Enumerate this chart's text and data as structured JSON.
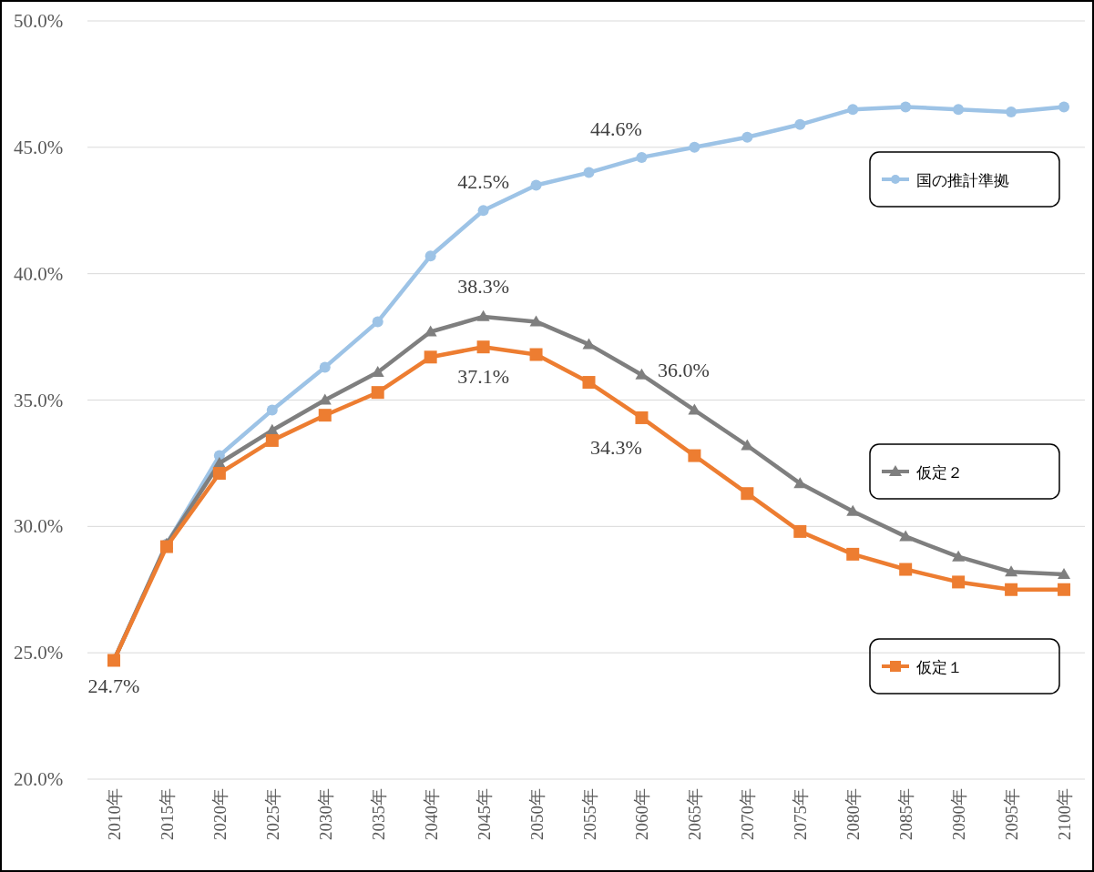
{
  "chart_data": {
    "type": "line",
    "categories": [
      "2010年",
      "2015年",
      "2020年",
      "2025年",
      "2030年",
      "2035年",
      "2040年",
      "2045年",
      "2050年",
      "2055年",
      "2060年",
      "2065年",
      "2070年",
      "2075年",
      "2080年",
      "2085年",
      "2090年",
      "2095年",
      "2100年"
    ],
    "series": [
      {
        "name": "国の推計準拠",
        "color": "#9dc3e6",
        "marker": "circle",
        "values": [
          24.7,
          29.3,
          32.8,
          34.6,
          36.3,
          38.1,
          40.7,
          42.5,
          43.5,
          44.0,
          44.6,
          45.0,
          45.4,
          45.9,
          46.5,
          46.6,
          46.5,
          46.4,
          46.6
        ]
      },
      {
        "name": "仮定２",
        "color": "#7f7f7f",
        "marker": "triangle",
        "values": [
          24.7,
          29.3,
          32.5,
          33.8,
          35.0,
          36.1,
          37.7,
          38.3,
          38.1,
          37.2,
          36.0,
          34.6,
          33.2,
          31.7,
          30.6,
          29.6,
          28.8,
          28.2,
          28.1
        ]
      },
      {
        "name": "仮定１",
        "color": "#ed7d31",
        "marker": "square",
        "values": [
          24.7,
          29.2,
          32.1,
          33.4,
          34.4,
          35.3,
          36.7,
          37.1,
          36.8,
          35.7,
          34.3,
          32.8,
          31.3,
          29.8,
          28.9,
          28.3,
          27.8,
          27.5,
          27.5
        ]
      }
    ],
    "ylim": [
      20,
      50
    ],
    "yticks": [
      {
        "value": 20,
        "label": "20.0%"
      },
      {
        "value": 25,
        "label": "25.0%"
      },
      {
        "value": 30,
        "label": "30.0%"
      },
      {
        "value": 35,
        "label": "35.0%"
      },
      {
        "value": 40,
        "label": "40.0%"
      },
      {
        "value": 45,
        "label": "45.0%"
      },
      {
        "value": 50,
        "label": "50.0%"
      }
    ],
    "grid": "y",
    "legend": "right",
    "line_style": "solid",
    "annotations": [
      {
        "text": "24.7%",
        "x": "2010年",
        "y": 24.7
      },
      {
        "text": "42.5%",
        "x": "2045年",
        "y": 42.5
      },
      {
        "text": "44.6%",
        "x": "2060年",
        "y": 44.6
      },
      {
        "text": "38.3%",
        "x": "2045年",
        "y": 38.3
      },
      {
        "text": "37.1%",
        "x": "2045年",
        "y": 37.1
      },
      {
        "text": "36.0%",
        "x": "2060年",
        "y": 36.0
      },
      {
        "text": "34.3%",
        "x": "2060年",
        "y": 34.3
      }
    ]
  }
}
